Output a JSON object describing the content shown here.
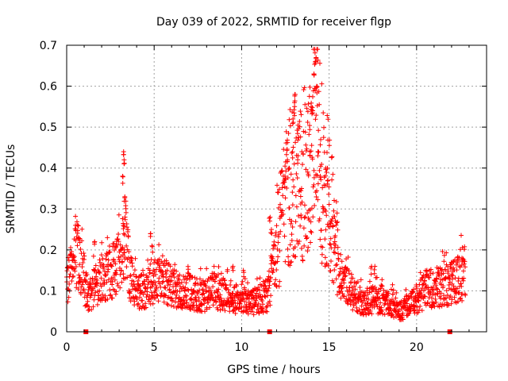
{
  "chart_data": {
    "type": "scatter",
    "title": "Day 039 of 2022, SRMTID for receiver flgp",
    "xlabel": "GPS time / hours",
    "ylabel": "SRMTID / TECUs",
    "xlim": [
      0,
      24
    ],
    "ylim": [
      0,
      0.7
    ],
    "grid": true,
    "x_ticks": [
      0,
      5,
      10,
      15,
      20
    ],
    "x_tick_labels": [
      "0",
      "5",
      "10",
      "15",
      "20"
    ],
    "y_ticks": [
      0,
      0.1,
      0.2,
      0.3,
      0.4,
      0.5,
      0.6,
      0.7
    ],
    "y_tick_labels": [
      "0",
      "0.1",
      "0.2",
      "0.3",
      "0.4",
      "0.5",
      "0.6",
      "0.7"
    ],
    "marker": "+",
    "color": "#ff0000",
    "baseline_markers_x": [
      1.1,
      11.6,
      21.9
    ],
    "profile": {
      "x": [
        0.0,
        0.3,
        0.6,
        0.9,
        1.2,
        1.6,
        2.0,
        2.5,
        3.0,
        3.3,
        3.6,
        4.0,
        4.5,
        5.0,
        5.5,
        6.0,
        6.5,
        7.0,
        7.5,
        8.0,
        8.5,
        9.0,
        9.5,
        10.0,
        10.5,
        11.0,
        11.5,
        12.0,
        12.5,
        13.0,
        13.5,
        14.0,
        14.3,
        14.6,
        15.0,
        15.3,
        15.7,
        16.0,
        16.5,
        17.0,
        17.5,
        18.0,
        18.5,
        19.0,
        19.5,
        20.0,
        20.5,
        21.0,
        21.5,
        22.0,
        22.5,
        22.8
      ],
      "y": [
        0.12,
        0.15,
        0.19,
        0.15,
        0.08,
        0.11,
        0.13,
        0.14,
        0.17,
        0.24,
        0.14,
        0.1,
        0.1,
        0.12,
        0.13,
        0.11,
        0.1,
        0.1,
        0.09,
        0.09,
        0.1,
        0.09,
        0.08,
        0.08,
        0.07,
        0.08,
        0.09,
        0.18,
        0.24,
        0.32,
        0.3,
        0.34,
        0.4,
        0.3,
        0.26,
        0.18,
        0.13,
        0.11,
        0.09,
        0.07,
        0.08,
        0.08,
        0.07,
        0.05,
        0.06,
        0.08,
        0.1,
        0.11,
        0.11,
        0.12,
        0.13,
        0.15
      ]
    },
    "spikes": [
      {
        "x": 0.5,
        "y": 0.26
      },
      {
        "x": 0.7,
        "y": 0.23
      },
      {
        "x": 1.6,
        "y": 0.22
      },
      {
        "x": 2.8,
        "y": 0.21
      },
      {
        "x": 3.25,
        "y": 0.44
      },
      {
        "x": 3.3,
        "y": 0.42
      },
      {
        "x": 3.2,
        "y": 0.38
      },
      {
        "x": 3.35,
        "y": 0.33
      },
      {
        "x": 3.25,
        "y": 0.26
      },
      {
        "x": 3.3,
        "y": 0.2
      },
      {
        "x": 4.8,
        "y": 0.24
      },
      {
        "x": 4.9,
        "y": 0.21
      },
      {
        "x": 9.5,
        "y": 0.16
      },
      {
        "x": 10.1,
        "y": 0.15
      },
      {
        "x": 11.6,
        "y": 0.28
      },
      {
        "x": 11.7,
        "y": 0.25
      },
      {
        "x": 12.5,
        "y": 0.38
      },
      {
        "x": 12.6,
        "y": 0.42
      },
      {
        "x": 12.7,
        "y": 0.4
      },
      {
        "x": 12.9,
        "y": 0.44
      },
      {
        "x": 12.95,
        "y": 0.52
      },
      {
        "x": 13.0,
        "y": 0.56
      },
      {
        "x": 13.05,
        "y": 0.58
      },
      {
        "x": 13.2,
        "y": 0.43
      },
      {
        "x": 13.4,
        "y": 0.35
      },
      {
        "x": 13.8,
        "y": 0.39
      },
      {
        "x": 13.9,
        "y": 0.44
      },
      {
        "x": 14.0,
        "y": 0.55
      },
      {
        "x": 14.05,
        "y": 0.54
      },
      {
        "x": 14.15,
        "y": 0.63
      },
      {
        "x": 14.2,
        "y": 0.66
      },
      {
        "x": 14.25,
        "y": 0.67
      },
      {
        "x": 14.3,
        "y": 0.6
      },
      {
        "x": 14.35,
        "y": 0.44
      },
      {
        "x": 14.5,
        "y": 0.38
      },
      {
        "x": 14.8,
        "y": 0.4
      },
      {
        "x": 14.9,
        "y": 0.37
      },
      {
        "x": 15.1,
        "y": 0.27
      },
      {
        "x": 15.3,
        "y": 0.22
      },
      {
        "x": 17.4,
        "y": 0.16
      },
      {
        "x": 17.6,
        "y": 0.16
      },
      {
        "x": 22.0,
        "y": 0.17
      },
      {
        "x": 22.6,
        "y": 0.18
      }
    ]
  }
}
